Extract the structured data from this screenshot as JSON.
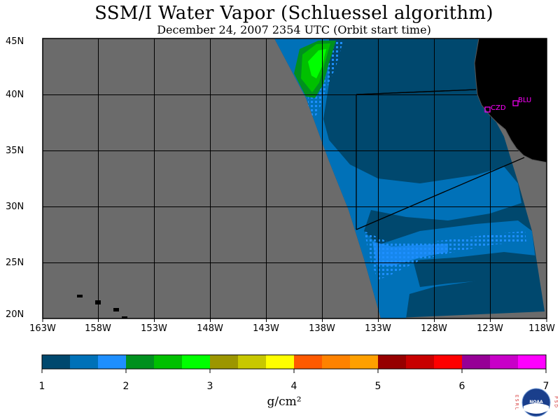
{
  "title": "SSM/I Water Vapor (Schluessel algorithm)",
  "subtitle": "December 24, 2007  2354 UTC  (Orbit start time)",
  "map": {
    "lat_labels": [
      "45N",
      "40N",
      "35N",
      "30N",
      "25N",
      "20N"
    ],
    "lon_labels": [
      "163W",
      "158W",
      "153W",
      "148W",
      "143W",
      "138W",
      "133W",
      "128W",
      "123W",
      "118W"
    ],
    "stations": [
      {
        "label": "CZD"
      },
      {
        "label": "BLU"
      }
    ],
    "colors": {
      "no_data": "#6b6b6b",
      "land": "#000000",
      "station": "#ff00ff"
    }
  },
  "legend": {
    "tick_labels": [
      "1",
      "2",
      "3",
      "4",
      "5",
      "6",
      "7"
    ],
    "units": "g/cm²",
    "colors": [
      "#00486e",
      "#0071b8",
      "#1e8fff",
      "#00901e",
      "#00c000",
      "#00ff00",
      "#9c9600",
      "#c8c800",
      "#ffff00",
      "#ff5a00",
      "#ff8200",
      "#ffa000",
      "#960000",
      "#c80000",
      "#ff0000",
      "#960096",
      "#c800c8",
      "#ff00ff"
    ]
  },
  "logo": {
    "left_letters": "ESRL",
    "right_letters": "PSD",
    "center_text": "NOAA"
  }
}
